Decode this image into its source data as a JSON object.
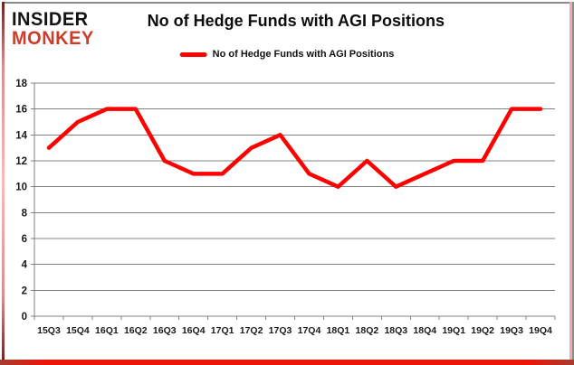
{
  "brand": {
    "line1": "INSIDER",
    "line2": "MONKEY"
  },
  "header": {
    "title": "No of Hedge Funds with AGI Positions"
  },
  "legend": {
    "label": "No of Hedge Funds with AGI Positions"
  },
  "chart_data": {
    "type": "line",
    "title": "No of Hedge Funds with AGI Positions",
    "series_name": "No of Hedge Funds with AGI Positions",
    "categories": [
      "15Q3",
      "15Q4",
      "16Q1",
      "16Q2",
      "16Q3",
      "16Q4",
      "17Q1",
      "17Q2",
      "17Q3",
      "17Q4",
      "18Q1",
      "18Q2",
      "18Q3",
      "18Q4",
      "19Q1",
      "19Q2",
      "19Q3",
      "19Q4"
    ],
    "values": [
      13,
      15,
      16,
      16,
      12,
      11,
      11,
      13,
      14,
      11,
      10,
      12,
      10,
      11,
      12,
      12,
      16,
      16
    ],
    "xlabel": "",
    "ylabel": "",
    "ylim": [
      0,
      18
    ],
    "ytick_step": 2,
    "grid": true,
    "legend_position": "top-center"
  },
  "colors": {
    "line_red": "#fe0000",
    "logo_red": "#cb3d2a",
    "logo_black": "#141414",
    "grid_gray": "#808080",
    "axis_text": "#1a1a1a",
    "frame_bottom_red": "#ed1508",
    "frame_gray": "#8c8c8c"
  }
}
